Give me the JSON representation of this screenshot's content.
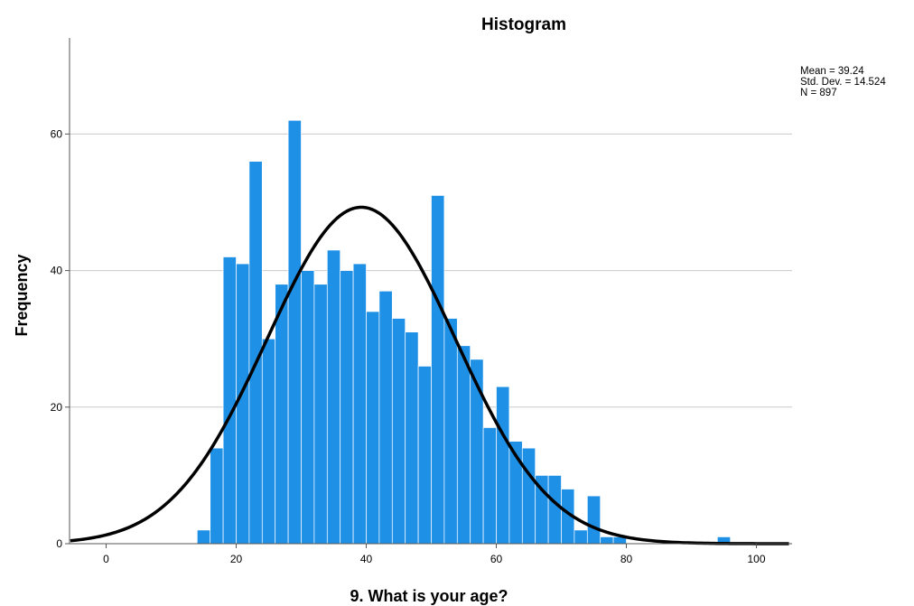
{
  "chart_data": {
    "type": "bar",
    "title": "Histogram",
    "xlabel": "9.  What is your age?",
    "ylabel": "Frequency",
    "xlim": [
      -5.5,
      105
    ],
    "ylim": [
      0,
      75
    ],
    "x_ticks": [
      0,
      20,
      40,
      60,
      80,
      100
    ],
    "y_ticks": [
      0,
      20,
      40,
      60
    ],
    "grid": true,
    "bin_width": 2,
    "bins": [
      {
        "start": 14,
        "count": 2
      },
      {
        "start": 16,
        "count": 14
      },
      {
        "start": 18,
        "count": 42
      },
      {
        "start": 20,
        "count": 41
      },
      {
        "start": 22,
        "count": 56
      },
      {
        "start": 24,
        "count": 30
      },
      {
        "start": 26,
        "count": 38
      },
      {
        "start": 28,
        "count": 62
      },
      {
        "start": 30,
        "count": 40
      },
      {
        "start": 32,
        "count": 38
      },
      {
        "start": 34,
        "count": 43
      },
      {
        "start": 36,
        "count": 40
      },
      {
        "start": 38,
        "count": 41
      },
      {
        "start": 40,
        "count": 34
      },
      {
        "start": 42,
        "count": 37
      },
      {
        "start": 44,
        "count": 33
      },
      {
        "start": 46,
        "count": 31
      },
      {
        "start": 48,
        "count": 26
      },
      {
        "start": 50,
        "count": 51
      },
      {
        "start": 52,
        "count": 33
      },
      {
        "start": 54,
        "count": 29
      },
      {
        "start": 56,
        "count": 27
      },
      {
        "start": 58,
        "count": 17
      },
      {
        "start": 60,
        "count": 23
      },
      {
        "start": 62,
        "count": 15
      },
      {
        "start": 64,
        "count": 14
      },
      {
        "start": 66,
        "count": 10
      },
      {
        "start": 68,
        "count": 10
      },
      {
        "start": 70,
        "count": 8
      },
      {
        "start": 72,
        "count": 2
      },
      {
        "start": 74,
        "count": 7
      },
      {
        "start": 76,
        "count": 1
      },
      {
        "start": 78,
        "count": 1
      },
      {
        "start": 94,
        "count": 1
      }
    ],
    "normal_curve": {
      "mean": 39.24,
      "std_dev": 14.524,
      "n": 897
    },
    "stats_lines": [
      "Mean = 39.24",
      "Std. Dev. = 14.524",
      "N = 897"
    ],
    "colors": {
      "bar": "#1e90e6",
      "curve": "#000000",
      "grid": "#c9c9c9"
    }
  }
}
